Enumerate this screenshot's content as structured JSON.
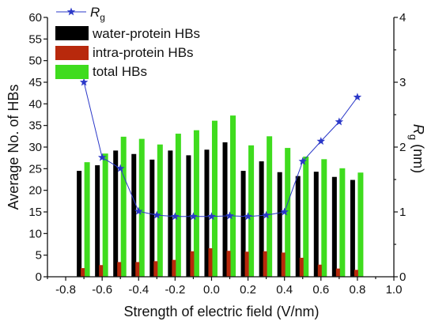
{
  "chart_data": {
    "type": "bar",
    "x": [
      -0.7,
      -0.6,
      -0.5,
      -0.4,
      -0.3,
      -0.2,
      -0.1,
      0.0,
      0.1,
      0.2,
      0.3,
      0.4,
      0.5,
      0.6,
      0.7,
      0.8
    ],
    "xlabel": "Strength of electric field (V/nm)",
    "ylabel": "Average No. of HBs",
    "y2label": {
      "main": "R",
      "sub": "g",
      "unit": "(nm)"
    },
    "xlim": [
      -0.9,
      1.0
    ],
    "ylim": [
      0,
      60
    ],
    "y2lim": [
      0,
      4
    ],
    "xticks": [
      "-0.8",
      "-0.6",
      "-0.4",
      "-0.2",
      "0.0",
      "0.2",
      "0.4",
      "0.6",
      "0.8",
      "1.0"
    ],
    "yticks": [
      "0",
      "5",
      "10",
      "15",
      "20",
      "25",
      "30",
      "35",
      "40",
      "45",
      "50",
      "55",
      "60"
    ],
    "y2ticks": [
      "0",
      "1",
      "2",
      "3",
      "4"
    ],
    "grid": false,
    "legend": "top-left",
    "series": [
      {
        "name": "water-protein HBs",
        "type": "bar",
        "axis": "left",
        "color": "#000000",
        "values": [
          24.5,
          25.8,
          29.2,
          28.4,
          27.1,
          29.2,
          28.1,
          29.4,
          31.1,
          24.5,
          26.7,
          24.2,
          23.3,
          24.3,
          23.1,
          22.4
        ]
      },
      {
        "name": "intra-protein HBs",
        "type": "bar",
        "axis": "left",
        "color": "#b8290c",
        "values": [
          2.0,
          2.7,
          3.4,
          3.4,
          3.6,
          3.9,
          5.9,
          6.6,
          6.0,
          5.8,
          5.9,
          5.6,
          4.4,
          2.8,
          1.9,
          1.6
        ]
      },
      {
        "name": "total HBs",
        "type": "bar",
        "axis": "left",
        "color": "#3fdc1e",
        "values": [
          26.5,
          28.5,
          32.4,
          31.9,
          30.6,
          33.1,
          33.9,
          36.1,
          37.3,
          30.4,
          32.5,
          29.8,
          27.8,
          27.2,
          25.1,
          24.1
        ]
      },
      {
        "name": {
          "main": "R",
          "sub": "g"
        },
        "type": "line",
        "marker": "star",
        "axis": "right",
        "color": "#2b38c8",
        "values": [
          3.0,
          1.84,
          1.67,
          1.01,
          0.95,
          0.93,
          0.93,
          0.93,
          0.94,
          0.93,
          0.95,
          1.0,
          1.78,
          2.09,
          2.39,
          2.77
        ]
      }
    ]
  }
}
